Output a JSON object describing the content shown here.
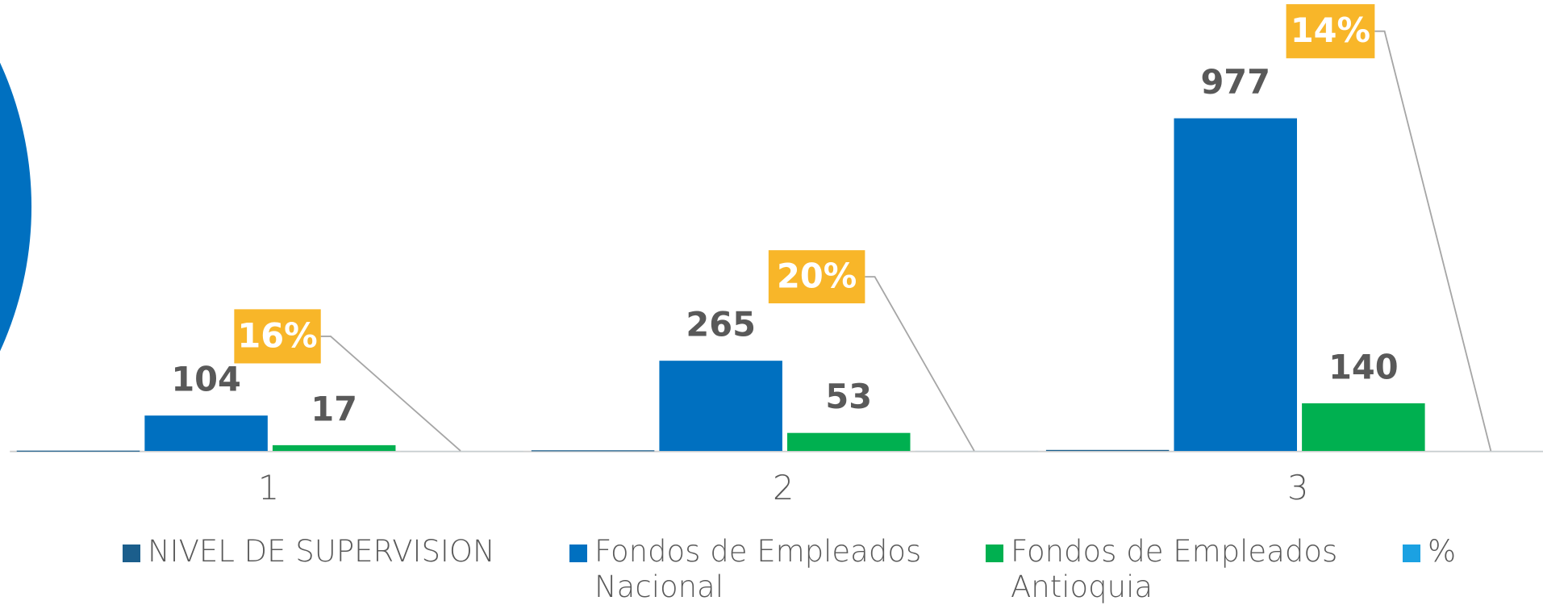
{
  "chart_data": {
    "type": "bar",
    "categories": [
      "1",
      "2",
      "3"
    ],
    "ylim": [
      0,
      1000
    ],
    "series": [
      {
        "name": "NIVEL DE SUPERVISION",
        "color": "#1b5e8c",
        "values": [
          1,
          2,
          3
        ]
      },
      {
        "name": "Fondos de Empleados Nacional",
        "color": "#0070c0",
        "values": [
          104,
          265,
          977
        ]
      },
      {
        "name": "Fondos de Empleados Antioquia",
        "color": "#00b050",
        "values": [
          17,
          53,
          140
        ]
      },
      {
        "name": "%",
        "color": "#1ba1e2",
        "values": [
          0.16,
          0.2,
          0.14
        ],
        "value_labels": [
          "16%",
          "20%",
          "14%"
        ],
        "label_color": "#f8b629"
      }
    ]
  }
}
